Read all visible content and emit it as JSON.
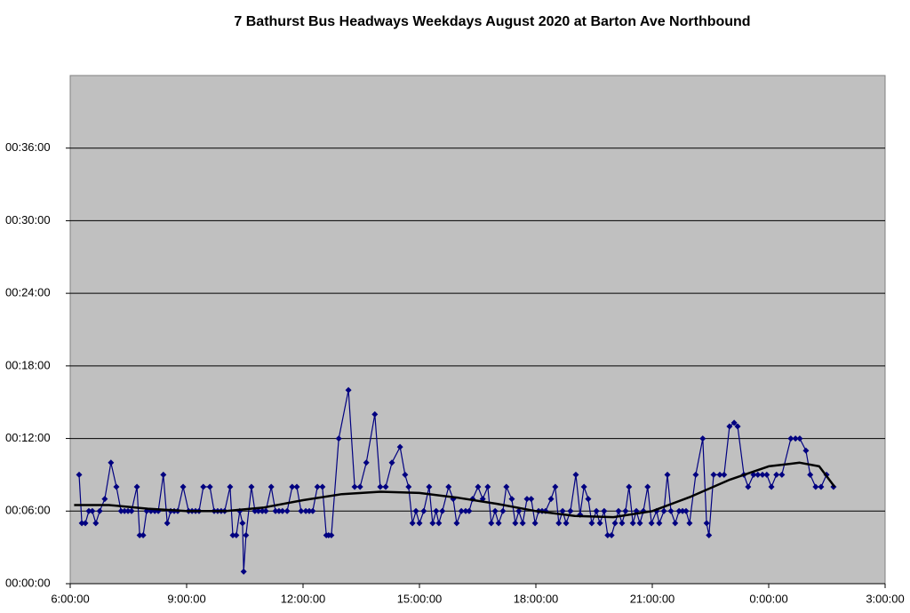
{
  "chart_data": {
    "type": "line",
    "title": "7 Bathurst Bus Headways Weekdays August 2020 at Barton Ave Northbound",
    "xlim": [
      6,
      27
    ],
    "ylim": [
      0,
      42
    ],
    "xticks": [
      {
        "value": 6,
        "label": "6:00:00"
      },
      {
        "value": 9,
        "label": "9:00:00"
      },
      {
        "value": 12,
        "label": "12:00:00"
      },
      {
        "value": 15,
        "label": "15:00:00"
      },
      {
        "value": 18,
        "label": "18:00:00"
      },
      {
        "value": 21,
        "label": "21:00:00"
      },
      {
        "value": 24,
        "label": "0:00:00"
      },
      {
        "value": 27,
        "label": "3:00:00"
      }
    ],
    "yticks": [
      {
        "value": 0,
        "label": "00:00:00"
      },
      {
        "value": 6,
        "label": "00:06:00"
      },
      {
        "value": 12,
        "label": "00:12:00"
      },
      {
        "value": 18,
        "label": "00:18:00"
      },
      {
        "value": 24,
        "label": "00:24:00"
      },
      {
        "value": 30,
        "label": "00:30:00"
      },
      {
        "value": 36,
        "label": "00:36:00"
      }
    ],
    "grid": true,
    "plot_background": "#c0c0c0",
    "series": [
      {
        "color": "#000080",
        "marker": "diamond",
        "x": [
          6.23,
          6.3,
          6.39,
          6.48,
          6.57,
          6.66,
          6.76,
          6.89,
          7.05,
          7.19,
          7.31,
          7.4,
          7.49,
          7.58,
          7.72,
          7.79,
          7.88,
          7.97,
          8.08,
          8.18,
          8.27,
          8.4,
          8.5,
          8.59,
          8.68,
          8.77,
          8.91,
          9.05,
          9.14,
          9.23,
          9.32,
          9.43,
          9.6,
          9.71,
          9.8,
          9.89,
          9.98,
          10.12,
          10.19,
          10.28,
          10.37,
          10.44,
          10.47,
          10.53,
          10.67,
          10.76,
          10.85,
          10.95,
          11.04,
          11.18,
          11.29,
          11.38,
          11.47,
          11.59,
          11.72,
          11.84,
          11.95,
          12.07,
          12.16,
          12.25,
          12.37,
          12.5,
          12.6,
          12.66,
          12.73,
          12.92,
          13.17,
          13.33,
          13.47,
          13.63,
          13.85,
          13.99,
          14.13,
          14.29,
          14.5,
          14.63,
          14.72,
          14.82,
          14.91,
          15.0,
          15.11,
          15.25,
          15.34,
          15.43,
          15.5,
          15.59,
          15.75,
          15.87,
          15.96,
          16.08,
          16.19,
          16.28,
          16.37,
          16.51,
          16.63,
          16.76,
          16.85,
          16.95,
          17.04,
          17.15,
          17.24,
          17.38,
          17.47,
          17.56,
          17.66,
          17.77,
          17.88,
          17.98,
          18.07,
          18.16,
          18.25,
          18.39,
          18.5,
          18.59,
          18.69,
          18.78,
          18.89,
          19.03,
          19.14,
          19.24,
          19.35,
          19.44,
          19.56,
          19.65,
          19.76,
          19.85,
          19.95,
          20.04,
          20.13,
          20.22,
          20.31,
          20.4,
          20.5,
          20.59,
          20.68,
          20.77,
          20.88,
          20.98,
          21.11,
          21.18,
          21.3,
          21.39,
          21.48,
          21.59,
          21.69,
          21.78,
          21.87,
          21.96,
          22.12,
          22.3,
          22.4,
          22.46,
          22.58,
          22.74,
          22.85,
          22.99,
          23.11,
          23.2,
          23.36,
          23.47,
          23.61,
          23.72,
          23.84,
          23.95,
          24.07,
          24.2,
          24.34,
          24.57,
          24.69,
          24.8,
          24.96,
          25.07,
          25.21,
          25.35,
          25.49,
          25.67
        ],
        "values": [
          9,
          5,
          5,
          6,
          6,
          5,
          6,
          7,
          10,
          8,
          6,
          6,
          6,
          6,
          8,
          4,
          4,
          6,
          6,
          6,
          6,
          9,
          5,
          6,
          6,
          6,
          8,
          6,
          6,
          6,
          6,
          8,
          8,
          6,
          6,
          6,
          6,
          8,
          4,
          4,
          6,
          5,
          1,
          4,
          8,
          6,
          6,
          6,
          6,
          8,
          6,
          6,
          6,
          6,
          8,
          8,
          6,
          6,
          6,
          6,
          8,
          8,
          4,
          4,
          4,
          12,
          16,
          8,
          8,
          10,
          14,
          8,
          8,
          10,
          11.3,
          9,
          8,
          5,
          6,
          5,
          6,
          8,
          5,
          6,
          5,
          6,
          8,
          7,
          5,
          6,
          6,
          6,
          7,
          8,
          7,
          8,
          5,
          6,
          5,
          6,
          8,
          7,
          5,
          6,
          5,
          7,
          7,
          5,
          6,
          6,
          6,
          7,
          8,
          5,
          6,
          5,
          6,
          9,
          5.7,
          8,
          7,
          5,
          6,
          5,
          6,
          4,
          4,
          5,
          6,
          5,
          6,
          8,
          5,
          6,
          5,
          6,
          8,
          5,
          6,
          5,
          6,
          9,
          6,
          5,
          6,
          6,
          6,
          5,
          9,
          12,
          5,
          4,
          9,
          9,
          9,
          13,
          13.3,
          13,
          9,
          8,
          9,
          9,
          9,
          9,
          8,
          9,
          9,
          12,
          12,
          12,
          11,
          9,
          8,
          8,
          9,
          8
        ]
      },
      {
        "color": "#000000",
        "x": [
          6.1,
          7,
          8,
          9,
          10,
          11,
          12,
          13,
          14,
          15,
          16,
          17,
          18,
          19,
          20,
          21,
          22,
          23,
          24,
          24.8,
          25.3,
          25.7
        ],
        "values": [
          6.5,
          6.5,
          6.2,
          6.0,
          6.0,
          6.3,
          6.9,
          7.4,
          7.6,
          7.5,
          7.1,
          6.6,
          6.0,
          5.6,
          5.5,
          6.0,
          7.2,
          8.6,
          9.7,
          10.0,
          9.7,
          8.0
        ]
      }
    ]
  }
}
